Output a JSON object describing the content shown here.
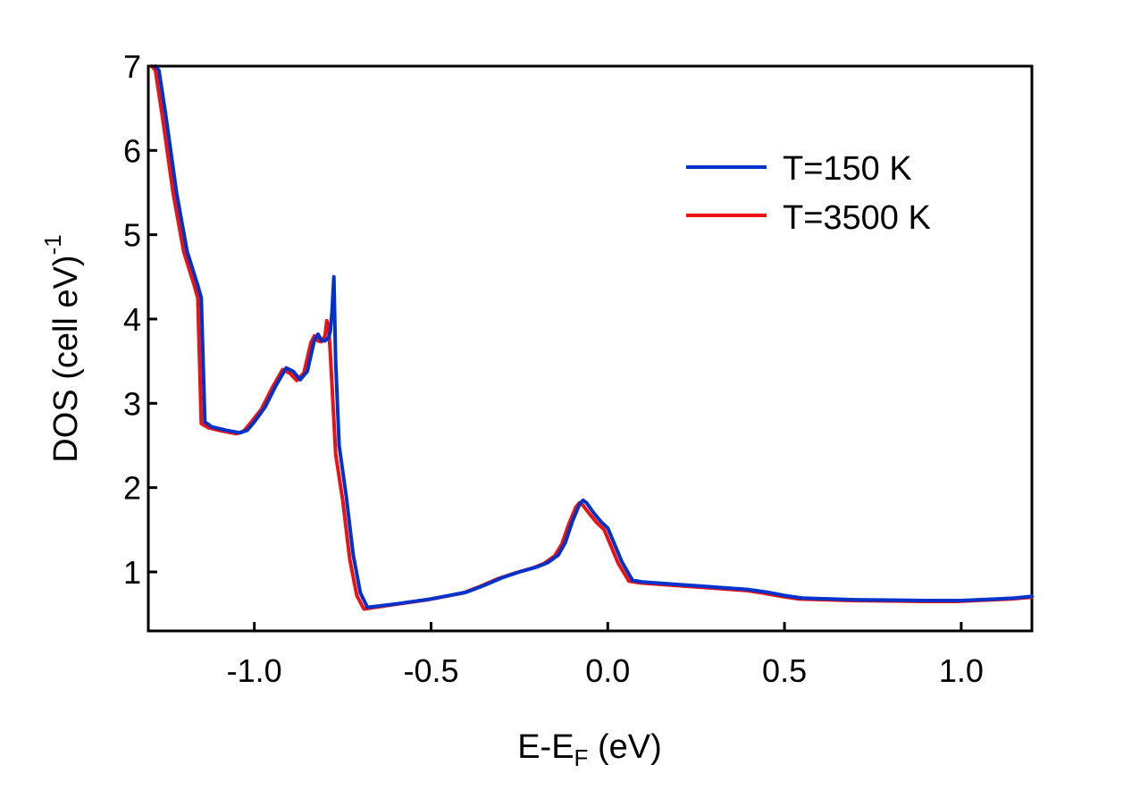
{
  "chart_data": {
    "type": "line",
    "title": "",
    "xlabel_main": "E-E",
    "xlabel_sub": "F",
    "xlabel_tail": " (eV)",
    "ylabel_main": "DOS (cell eV)",
    "ylabel_sup": "-1",
    "xlim": [
      -1.3,
      1.2
    ],
    "ylim": [
      0.3,
      7.0
    ],
    "xticks": [
      -1.0,
      -0.5,
      0.0,
      0.5,
      1.0
    ],
    "xtick_labels": [
      "-1.0",
      "-0.5",
      "0.0",
      "0.5",
      "1.0"
    ],
    "yticks": [
      1,
      2,
      3,
      4,
      5,
      6,
      7
    ],
    "ytick_labels": [
      "1",
      "2",
      "3",
      "4",
      "5",
      "6",
      "7"
    ],
    "grid": false,
    "legend_position": "top-right",
    "series": [
      {
        "name": "T=150 K",
        "color": "#0033cc",
        "x": [
          -1.28,
          -1.27,
          -1.25,
          -1.22,
          -1.19,
          -1.16,
          -1.15,
          -1.14,
          -1.12,
          -1.08,
          -1.04,
          -1.02,
          -1.0,
          -0.97,
          -0.94,
          -0.91,
          -0.89,
          -0.87,
          -0.85,
          -0.83,
          -0.82,
          -0.81,
          -0.8,
          -0.79,
          -0.785,
          -0.78,
          -0.775,
          -0.77,
          -0.76,
          -0.74,
          -0.72,
          -0.7,
          -0.68,
          -0.6,
          -0.5,
          -0.4,
          -0.35,
          -0.3,
          -0.25,
          -0.2,
          -0.17,
          -0.14,
          -0.12,
          -0.1,
          -0.08,
          -0.07,
          -0.06,
          -0.04,
          -0.02,
          0.0,
          0.02,
          0.04,
          0.07,
          0.1,
          0.2,
          0.3,
          0.4,
          0.45,
          0.5,
          0.55,
          0.7,
          0.9,
          1.0,
          1.05,
          1.1,
          1.15,
          1.2
        ],
        "y": [
          7.0,
          6.95,
          6.4,
          5.5,
          4.8,
          4.4,
          4.25,
          2.78,
          2.72,
          2.68,
          2.65,
          2.68,
          2.78,
          2.95,
          3.2,
          3.42,
          3.38,
          3.28,
          3.38,
          3.75,
          3.82,
          3.75,
          3.74,
          3.78,
          3.85,
          4.1,
          4.5,
          3.5,
          2.5,
          1.9,
          1.2,
          0.75,
          0.58,
          0.62,
          0.68,
          0.76,
          0.84,
          0.93,
          1.0,
          1.06,
          1.11,
          1.2,
          1.35,
          1.6,
          1.8,
          1.85,
          1.82,
          1.7,
          1.6,
          1.52,
          1.32,
          1.12,
          0.9,
          0.88,
          0.85,
          0.82,
          0.79,
          0.76,
          0.72,
          0.69,
          0.67,
          0.66,
          0.66,
          0.67,
          0.68,
          0.69,
          0.71
        ]
      },
      {
        "name": "T=3500 K",
        "color": "#ee1111",
        "x": [
          -1.29,
          -1.28,
          -1.26,
          -1.23,
          -1.2,
          -1.17,
          -1.16,
          -1.15,
          -1.13,
          -1.09,
          -1.05,
          -1.03,
          -1.01,
          -0.98,
          -0.95,
          -0.92,
          -0.9,
          -0.88,
          -0.86,
          -0.84,
          -0.83,
          -0.82,
          -0.81,
          -0.8,
          -0.795,
          -0.79,
          -0.785,
          -0.78,
          -0.77,
          -0.75,
          -0.73,
          -0.71,
          -0.69,
          -0.61,
          -0.51,
          -0.41,
          -0.36,
          -0.31,
          -0.26,
          -0.21,
          -0.18,
          -0.15,
          -0.13,
          -0.11,
          -0.09,
          -0.08,
          -0.07,
          -0.05,
          -0.03,
          -0.01,
          0.01,
          0.03,
          0.06,
          0.09,
          0.19,
          0.29,
          0.39,
          0.44,
          0.49,
          0.54,
          0.69,
          0.89,
          0.99,
          1.04,
          1.09,
          1.14,
          1.2
        ],
        "y": [
          7.0,
          6.95,
          6.4,
          5.5,
          4.8,
          4.4,
          4.25,
          2.76,
          2.71,
          2.67,
          2.64,
          2.67,
          2.77,
          2.93,
          3.18,
          3.4,
          3.36,
          3.27,
          3.36,
          3.72,
          3.8,
          3.74,
          3.73,
          3.8,
          3.98,
          3.9,
          3.6,
          3.2,
          2.4,
          1.85,
          1.15,
          0.72,
          0.56,
          0.61,
          0.67,
          0.75,
          0.83,
          0.92,
          0.99,
          1.05,
          1.1,
          1.19,
          1.33,
          1.57,
          1.77,
          1.82,
          1.79,
          1.68,
          1.58,
          1.5,
          1.3,
          1.1,
          0.89,
          0.87,
          0.84,
          0.81,
          0.78,
          0.75,
          0.71,
          0.68,
          0.66,
          0.65,
          0.65,
          0.66,
          0.67,
          0.68,
          0.7
        ]
      }
    ]
  }
}
